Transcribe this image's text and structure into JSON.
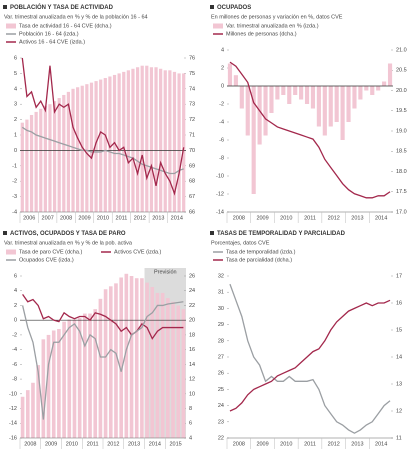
{
  "chart_data": [
    {
      "type": "bar-line",
      "title": "POBLACIÓN Y TASA DE ACTIVIDAD",
      "subtitle": "Var. trimestral anualizada en % y % de la población 16 - 64",
      "categories": [
        "2006",
        null,
        null,
        null,
        "2007",
        null,
        null,
        null,
        "2008",
        null,
        null,
        null,
        "2009",
        null,
        null,
        null,
        "2010",
        null,
        null,
        null,
        "2011",
        null,
        null,
        null,
        "2012",
        null,
        null,
        null,
        "2013",
        null,
        null,
        null,
        "2014",
        null,
        null,
        null
      ],
      "series": [
        {
          "name": "Tasa de actividad 16 - 64 CVE (dcha.)",
          "type": "bar",
          "axis": "y2",
          "color": "#f2c6d3",
          "values": [
            71.8,
            72.0,
            72.3,
            72.5,
            72.7,
            72.9,
            73.0,
            73.2,
            73.4,
            73.6,
            73.8,
            74.0,
            74.1,
            74.2,
            74.3,
            74.4,
            74.5,
            74.6,
            74.7,
            74.8,
            74.9,
            75.0,
            75.1,
            75.2,
            75.3,
            75.4,
            75.5,
            75.5,
            75.4,
            75.4,
            75.3,
            75.2,
            75.2,
            75.1,
            75.0,
            75.0
          ]
        },
        {
          "name": "Población 16 - 64 (izda.)",
          "type": "line",
          "color": "#9b9fa3",
          "values": [
            1.5,
            1.3,
            1.2,
            1.0,
            0.9,
            0.8,
            0.7,
            0.6,
            0.5,
            0.4,
            0.3,
            0.2,
            0.1,
            0.0,
            0.0,
            -0.1,
            -0.1,
            -0.1,
            0.0,
            -0.1,
            -0.2,
            -0.2,
            -0.3,
            -0.4,
            -0.5,
            -0.7,
            -0.9,
            -1.0,
            -1.1,
            -1.2,
            -1.3,
            -1.4,
            -1.5,
            -1.5,
            -1.3,
            -1.2
          ]
        },
        {
          "name": "Activos 16 - 64 CVE (izda.)",
          "type": "line",
          "color": "#a3284c",
          "values": [
            6,
            3.5,
            3.8,
            2.8,
            3.2,
            2.6,
            5.5,
            2.5,
            3.0,
            2.8,
            3.0,
            1.5,
            0.8,
            0.2,
            -0.2,
            -0.5,
            0.5,
            1.2,
            1.0,
            0.2,
            0.5,
            0.0,
            0.2,
            -0.8,
            -0.5,
            -1.5,
            -0.3,
            -1.8,
            -1.0,
            -2.3,
            -0.8,
            -1.5,
            -2.0,
            -2.8,
            -1.5,
            0.2
          ]
        }
      ],
      "ylim": [
        -4,
        6
      ],
      "yticks": [
        -4,
        -3,
        -2,
        -1,
        0,
        1,
        2,
        3,
        4,
        5,
        6
      ],
      "y2lim": [
        66,
        76
      ],
      "y2ticks": [
        66,
        67,
        68,
        69,
        70,
        71,
        72,
        73,
        74,
        75,
        76
      ]
    },
    {
      "type": "bar-line",
      "title": "OCUPADOS",
      "subtitle": "En millones de personas y variación en %, datos CVE",
      "categories": [
        "2008",
        null,
        null,
        null,
        "2009",
        null,
        null,
        null,
        "2010",
        null,
        null,
        null,
        "2011",
        null,
        null,
        null,
        "2012",
        null,
        null,
        null,
        "2013",
        null,
        null,
        null,
        "2014",
        null,
        null,
        null
      ],
      "series": [
        {
          "name": "Var. trimestral anualizada en % (izda.)",
          "type": "bar",
          "color": "#f2c6d3",
          "values": [
            2.5,
            1.2,
            -2.5,
            -5.5,
            -12,
            -6.5,
            -5.5,
            -3.0,
            -1.5,
            -1.0,
            -2.0,
            -1.0,
            -1.5,
            -2.0,
            -2.5,
            -4.5,
            -5.5,
            -4.5,
            -4.0,
            -6.0,
            -4.0,
            -2.5,
            -1.5,
            -0.5,
            -1.0,
            -0.5,
            0.5,
            2.5
          ]
        },
        {
          "name": "Millones de personas (dcha.)",
          "type": "line",
          "axis": "y2",
          "color": "#a3284c",
          "values": [
            20.7,
            20.6,
            20.4,
            20.2,
            19.7,
            19.5,
            19.3,
            19.2,
            19.1,
            19.05,
            19.0,
            18.95,
            18.9,
            18.85,
            18.8,
            18.6,
            18.3,
            18.1,
            17.9,
            17.7,
            17.55,
            17.45,
            17.4,
            17.35,
            17.35,
            17.4,
            17.4,
            17.5
          ]
        }
      ],
      "ylim": [
        -14,
        4
      ],
      "yticks": [
        -14,
        -12,
        -10,
        -8,
        -6,
        -4,
        -2,
        0,
        2,
        4
      ],
      "y2lim": [
        17,
        21
      ],
      "y2ticks": [
        {
          "value": 17,
          "label": "17.0"
        },
        17.5,
        {
          "value": 18,
          "label": "18.0"
        },
        18.5,
        {
          "value": 19,
          "label": "19.0"
        },
        19.5,
        {
          "value": 20,
          "label": "20.0"
        },
        20.5,
        {
          "value": 21,
          "label": "21.0"
        }
      ]
    },
    {
      "type": "bar-line",
      "title": "ACTIVOS, OCUPADOS Y TASA DE PARO",
      "subtitle": "Var. trimestral anualizada en % y % de la pob. activa",
      "categories": [
        "2008",
        null,
        null,
        null,
        "2009",
        null,
        null,
        null,
        "2010",
        null,
        null,
        null,
        "2011",
        null,
        null,
        null,
        "2012",
        null,
        null,
        null,
        "2013",
        null,
        null,
        null,
        "2014",
        null,
        null,
        null,
        "2015",
        null,
        null,
        null
      ],
      "series": [
        {
          "name": "Tasa de paro CVE (dcha.)",
          "type": "bar",
          "axis": "y2",
          "color": "#f2c6d3",
          "values": [
            9.6,
            10.5,
            11.5,
            13.9,
            17.4,
            18.0,
            18.6,
            18.8,
            19.8,
            20.1,
            20.1,
            20.3,
            20.9,
            20.9,
            21.5,
            22.9,
            24.2,
            24.6,
            25.0,
            25.8,
            26.3,
            26.0,
            25.7,
            25.7,
            25.1,
            24.5,
            23.7,
            23.7,
            23.0,
            22.5,
            22.0,
            21.5
          ]
        },
        {
          "name": "Activos CVE (izda.)",
          "type": "line",
          "color": "#a3284c",
          "values": [
            3.5,
            2.5,
            2.8,
            2.0,
            0.2,
            0.5,
            0.0,
            -0.2,
            1.0,
            0.5,
            0.2,
            0.5,
            0.5,
            0.0,
            1.0,
            0.8,
            0.5,
            0.0,
            -0.5,
            -1.5,
            -1.0,
            -2.0,
            -1.5,
            -0.5,
            -1.0,
            -2.5,
            -1.5,
            -1.0,
            -1.0,
            -1.0,
            -1.0,
            -1.0
          ]
        },
        {
          "name": "Ocupados CVE (izda.)",
          "type": "line",
          "color": "#9b9fa3",
          "values": [
            2.0,
            -1.0,
            -3.0,
            -7.0,
            -13.5,
            -6.0,
            -3.0,
            -3.0,
            -2.0,
            -1.0,
            -0.5,
            -1.5,
            -3.5,
            -2.0,
            -2.5,
            -5.0,
            -5.0,
            -4.0,
            -4.5,
            -7.0,
            -4.0,
            -2.0,
            -1.5,
            -1.0,
            0.5,
            1.0,
            2.0,
            2.0,
            2.2,
            2.3,
            2.4,
            2.5
          ]
        }
      ],
      "shaded_from": "2014",
      "shade_label": "Previsión",
      "ylim": [
        -16,
        6
      ],
      "yticks": [
        -16,
        -14,
        -12,
        -10,
        -8,
        -6,
        -4,
        -2,
        0,
        2,
        4,
        6
      ],
      "y2lim": [
        4,
        26
      ],
      "y2ticks": [
        4,
        6,
        8,
        10,
        12,
        14,
        16,
        18,
        20,
        22,
        24,
        26
      ]
    },
    {
      "type": "line",
      "title": "TASAS DE TEMPORALIDAD Y PARCIALIDAD",
      "subtitle": "Porcentajes, datos CVE",
      "categories": [
        "2008",
        null,
        null,
        null,
        "2009",
        null,
        null,
        null,
        "2010",
        null,
        null,
        null,
        "2011",
        null,
        null,
        null,
        "2012",
        null,
        null,
        null,
        "2013",
        null,
        null,
        null,
        "2014",
        null,
        null,
        null
      ],
      "series": [
        {
          "name": "Tasa de temporalidad (izda.)",
          "type": "line",
          "color": "#9b9fa3",
          "values": [
            31.5,
            30.5,
            29.5,
            28.0,
            27.0,
            26.5,
            25.5,
            25.8,
            25.5,
            25.5,
            25.8,
            25.5,
            25.5,
            25.5,
            25.6,
            25.0,
            24.0,
            23.5,
            23.0,
            22.8,
            22.5,
            22.3,
            22.5,
            22.8,
            23.0,
            23.5,
            24.0,
            24.3
          ]
        },
        {
          "name": "Tasa de parcialidad (dcha.)",
          "type": "line",
          "axis": "y2",
          "color": "#a3284c",
          "values": [
            12.0,
            12.1,
            12.3,
            12.6,
            12.8,
            12.9,
            13.0,
            13.1,
            13.3,
            13.4,
            13.5,
            13.6,
            13.8,
            14.0,
            14.2,
            14.3,
            14.6,
            15.0,
            15.3,
            15.5,
            15.7,
            15.8,
            15.9,
            16.0,
            15.9,
            16.0,
            16.0,
            16.1
          ]
        }
      ],
      "ylim": [
        22,
        32
      ],
      "yticks": [
        22,
        23,
        24,
        25,
        26,
        27,
        28,
        29,
        30,
        31,
        32
      ],
      "y2lim": [
        11,
        17
      ],
      "y2ticks": [
        11,
        12,
        13,
        14,
        15,
        16,
        17
      ]
    }
  ]
}
